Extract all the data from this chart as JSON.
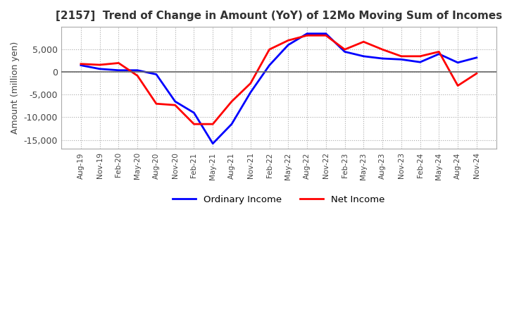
{
  "title": "[2157]  Trend of Change in Amount (YoY) of 12Mo Moving Sum of Incomes",
  "ylabel": "Amount (million yen)",
  "legend": [
    "Ordinary Income",
    "Net Income"
  ],
  "colors": [
    "#0000FF",
    "#FF0000"
  ],
  "x_labels": [
    "Aug-19",
    "Nov-19",
    "Feb-20",
    "May-20",
    "Aug-20",
    "Nov-20",
    "Feb-21",
    "May-21",
    "Aug-21",
    "Nov-21",
    "Feb-22",
    "May-22",
    "Aug-22",
    "Nov-22",
    "Feb-23",
    "May-23",
    "Aug-23",
    "Nov-23",
    "Feb-24",
    "May-24",
    "Aug-24",
    "Nov-24"
  ],
  "ordinary_income": [
    1500,
    700,
    400,
    400,
    -500,
    -6500,
    -9000,
    -15800,
    -11500,
    -4500,
    1500,
    6000,
    8500,
    8500,
    4500,
    3500,
    3000,
    2800,
    2200,
    4000,
    2100,
    3200
  ],
  "net_income": [
    1800,
    1600,
    2000,
    -800,
    -7000,
    -7300,
    -11500,
    -11500,
    -6500,
    -2500,
    5000,
    7000,
    8100,
    8100,
    5000,
    6700,
    5000,
    3500,
    3500,
    4500,
    -3000,
    -300
  ],
  "ylim": [
    -17000,
    10000
  ],
  "yticks": [
    -15000,
    -10000,
    -5000,
    0,
    5000
  ],
  "background_color": "#FFFFFF",
  "grid_color": "#AAAAAA",
  "zero_line_color": "#666666"
}
